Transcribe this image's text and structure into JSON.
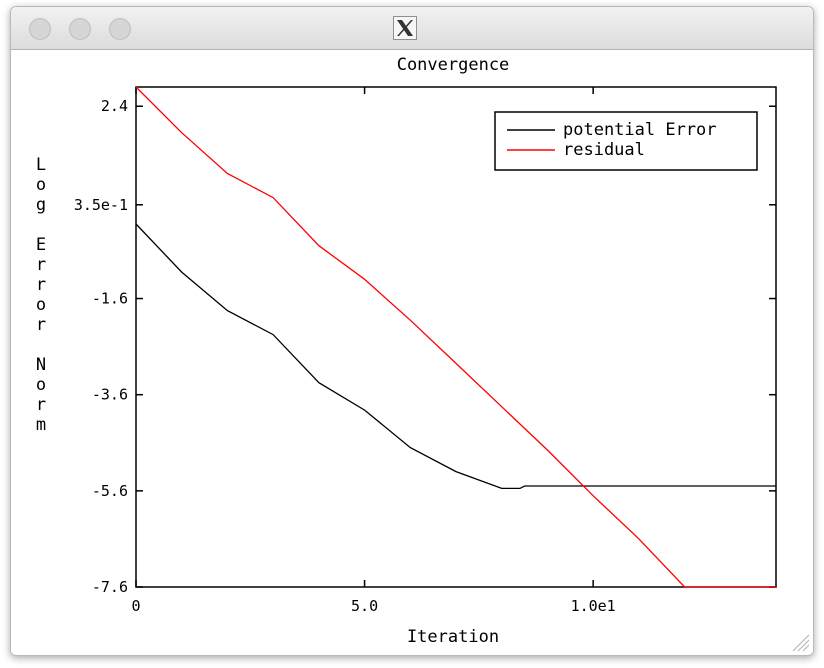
{
  "window": {
    "app_icon": "x11-icon",
    "traffic_lights": [
      "close",
      "minimize",
      "zoom"
    ]
  },
  "chart_data": {
    "type": "line",
    "title": "Convergence",
    "xlabel": "Iteration",
    "ylabel": "Log Error Norm",
    "xlim": [
      0,
      14
    ],
    "ylim": [
      -7.6,
      2.8
    ],
    "x_ticks": [
      {
        "value": 0,
        "label": "0"
      },
      {
        "value": 5,
        "label": "5.0"
      },
      {
        "value": 10,
        "label": "1.0e1"
      }
    ],
    "y_ticks": [
      {
        "value": 2.4,
        "label": "2.4"
      },
      {
        "value": 0.35,
        "label": "3.5e-1"
      },
      {
        "value": -1.6,
        "label": "-1.6"
      },
      {
        "value": -3.6,
        "label": "-3.6"
      },
      {
        "value": -5.6,
        "label": "-5.6"
      },
      {
        "value": -7.6,
        "label": "-7.6"
      }
    ],
    "grid": false,
    "legend_position": "top-right",
    "series": [
      {
        "name": "potential Error",
        "color": "#000000",
        "points": [
          [
            0,
            -0.05
          ],
          [
            1,
            -1.05
          ],
          [
            2,
            -1.85
          ],
          [
            3,
            -2.35
          ],
          [
            4,
            -3.35
          ],
          [
            5,
            -3.92
          ],
          [
            6,
            -4.7
          ],
          [
            7,
            -5.2
          ],
          [
            8,
            -5.55
          ],
          [
            8.4,
            -5.55
          ],
          [
            8.5,
            -5.5
          ],
          [
            14,
            -5.5
          ]
        ]
      },
      {
        "name": "residual",
        "color": "#ff0000",
        "points": [
          [
            0,
            2.8
          ],
          [
            1,
            1.85
          ],
          [
            2,
            1.0
          ],
          [
            3,
            0.5
          ],
          [
            4,
            -0.5
          ],
          [
            5,
            -1.2
          ],
          [
            6,
            -2.05
          ],
          [
            7,
            -2.95
          ],
          [
            8,
            -3.85
          ],
          [
            9,
            -4.75
          ],
          [
            10,
            -5.7
          ],
          [
            11,
            -6.6
          ],
          [
            12,
            -7.6
          ],
          [
            14,
            -7.6
          ]
        ]
      }
    ]
  }
}
